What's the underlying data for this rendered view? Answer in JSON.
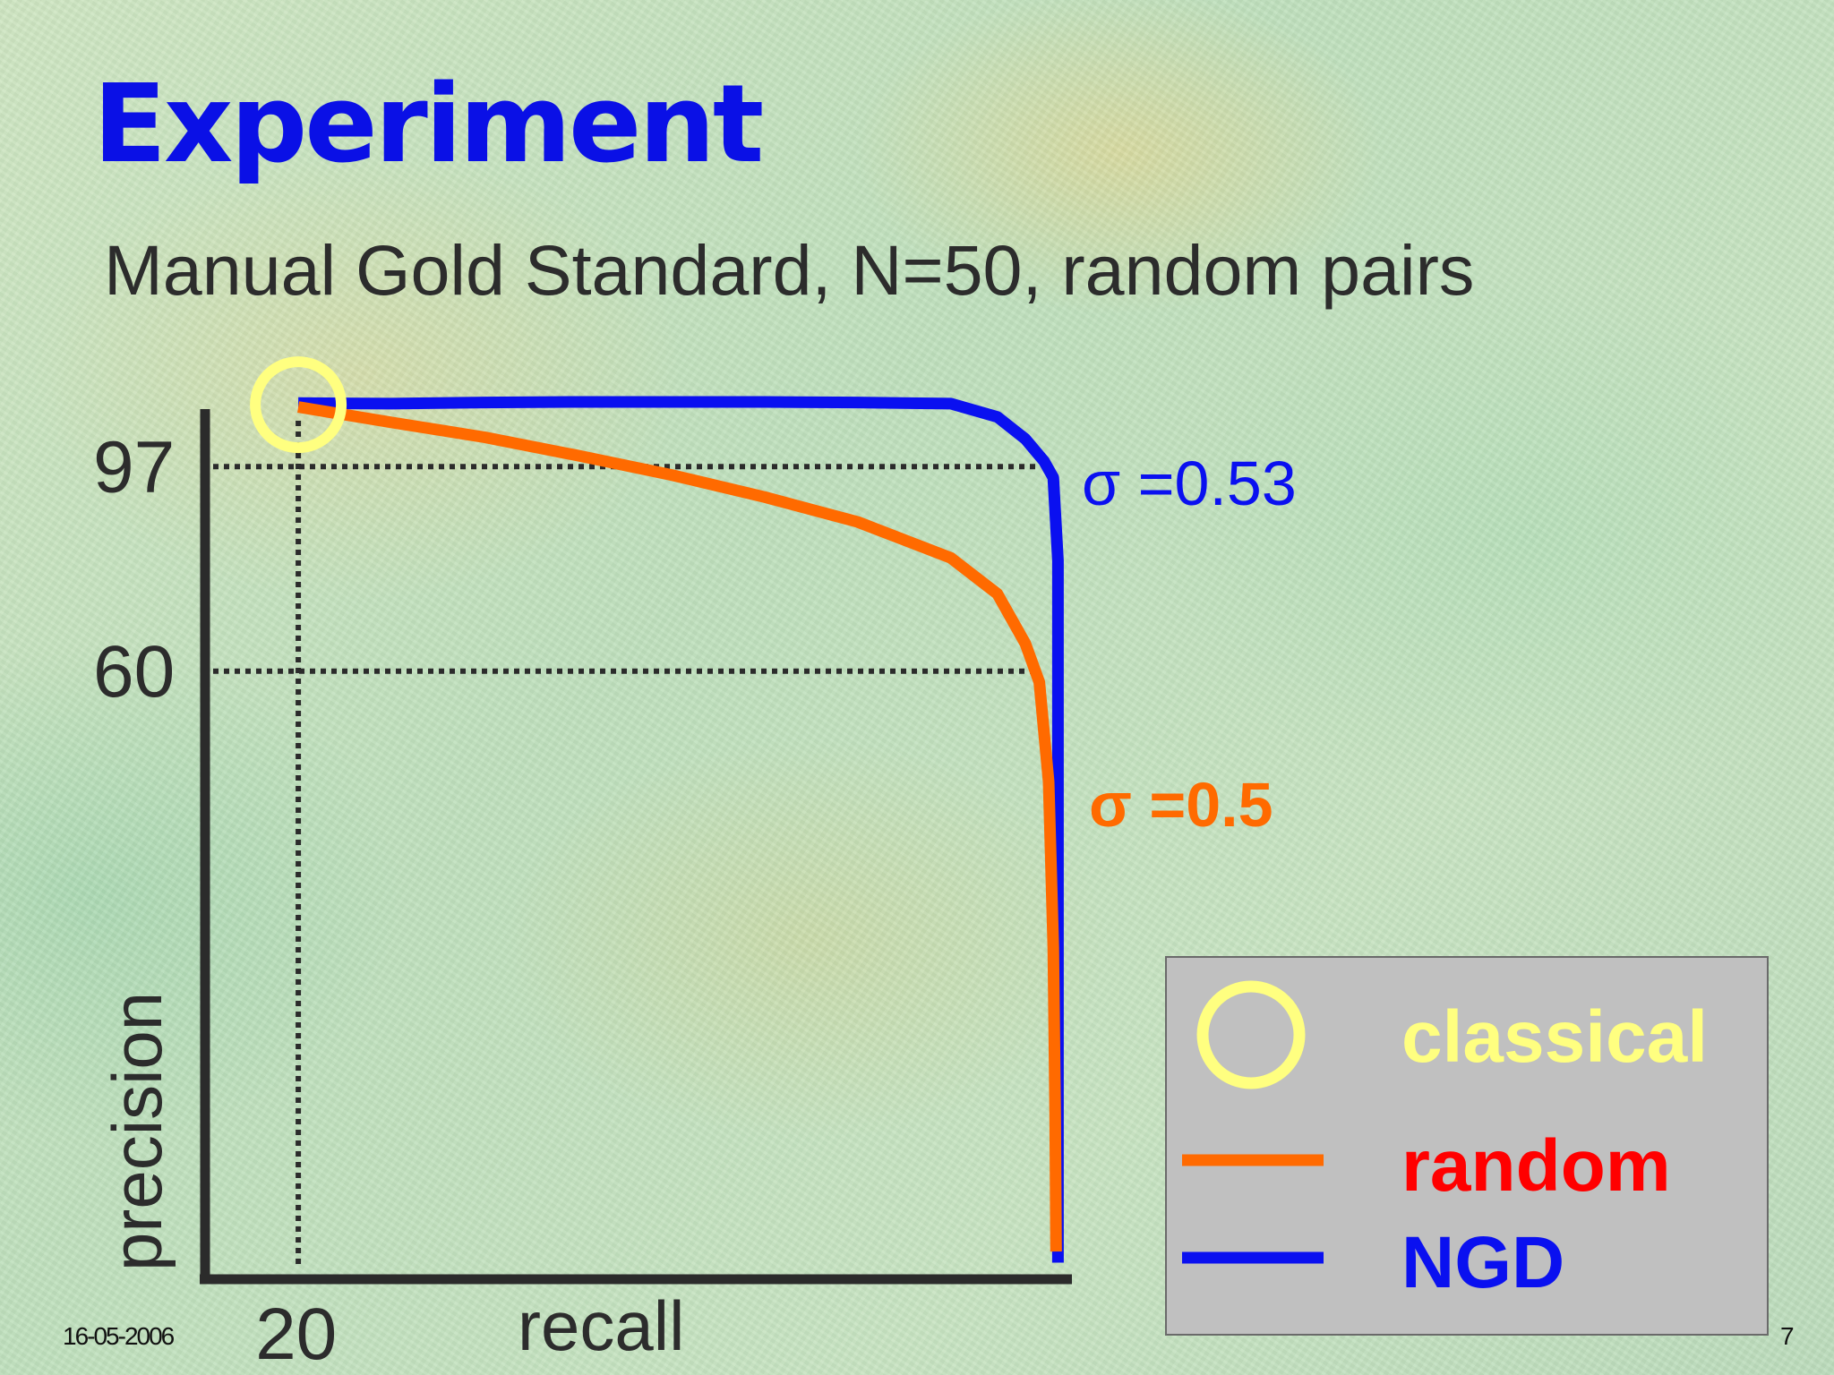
{
  "slide": {
    "title": "Experiment",
    "subtitle": "Manual Gold Standard, N=50, random pairs",
    "date": "16-05-2006",
    "page_number": "7"
  },
  "chart_data": {
    "type": "line",
    "xlabel": "recall",
    "ylabel": "precision",
    "x_tick_labels": [
      "20"
    ],
    "y_tick_labels": [
      "97",
      "60"
    ],
    "reference_lines": [
      {
        "axis": "x",
        "value": 20
      },
      {
        "axis": "y",
        "value": 97
      },
      {
        "axis": "y",
        "value": 60
      }
    ],
    "series": [
      {
        "name": "NGD",
        "color": "#0a10f0",
        "annotation": "σ =0.53",
        "x": [
          20,
          30,
          40,
          50,
          60,
          70,
          80,
          90,
          95,
          98,
          100,
          101,
          101.5,
          101.5,
          101.5,
          101.5
        ],
        "y": [
          108.5,
          108.4,
          108.6,
          108.7,
          108.7,
          108.7,
          108.6,
          108.4,
          106,
          102,
          98,
          95,
          80,
          60,
          20,
          -47
        ]
      },
      {
        "name": "random",
        "color": "#ff6a00",
        "annotation": "σ =0.5",
        "x": [
          20,
          30,
          40,
          50,
          60,
          70,
          80,
          90,
          95,
          98,
          99.5,
          100.5,
          101,
          101.2,
          101.3
        ],
        "y": [
          107.8,
          105,
          102.3,
          99,
          95.5,
          91.5,
          87,
          80.5,
          74,
          65,
          58,
          40,
          10,
          -20,
          -45
        ]
      },
      {
        "name": "classical",
        "color": "#ffff80",
        "marker": "circle",
        "x": [
          20
        ],
        "y": [
          108.2
        ]
      }
    ],
    "legend": {
      "position": "bottom-right",
      "entries": [
        {
          "label": "classical",
          "marker": "circle",
          "color": "#ffff80",
          "text_color": "#ffff80"
        },
        {
          "label": "random",
          "marker": "line",
          "color": "#ff6a00",
          "text_color": "#ff0000"
        },
        {
          "label": "NGD",
          "marker": "line",
          "color": "#0a10f0",
          "text_color": "#0a10f0"
        }
      ],
      "background": "#c0c0c0"
    },
    "xlim": [
      10,
      103
    ],
    "ylim": [
      -50,
      110
    ]
  }
}
